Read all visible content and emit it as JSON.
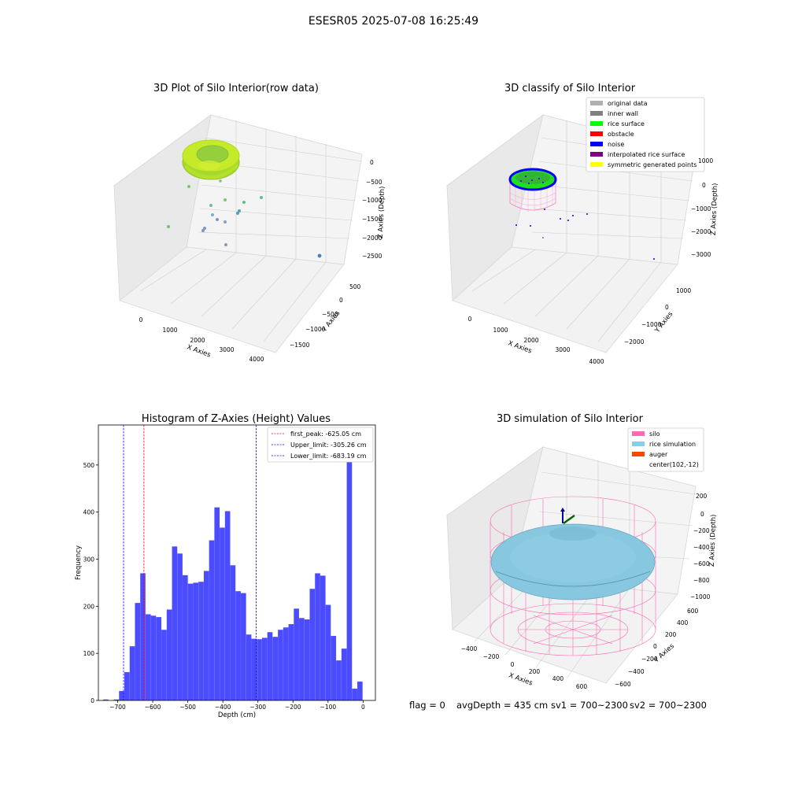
{
  "figure_title": "ESESR05 2025-07-08 16:25:49",
  "footer": {
    "flag": "flag = 0",
    "avg_depth": "avgDepth = 435 cm",
    "sv1": "sv1 = 700~2300",
    "sv2": "sv2 = 700~2300"
  },
  "colors": {
    "hist_bar": "#4b4bff",
    "first_peak": "#ff0000",
    "limits": "#0000ff",
    "rice_points": "#b5e61d",
    "silo_mesh": "#ff69b4",
    "rice_sim": "#87c7e0",
    "auger": "#ff4500"
  },
  "panels": {
    "raw": {
      "title": "3D Plot of Silo Interior(row data)",
      "x_label": "X Axies",
      "y_label": "Y Axies",
      "z_label": "Z Axies (Depth)",
      "x_ticks": [
        "0",
        "1000",
        "2000",
        "3000",
        "4000"
      ],
      "y_ticks": [
        "500",
        "0",
        "−500",
        "−1000",
        "−1500"
      ],
      "z_ticks": [
        "0",
        "−500",
        "−1000",
        "−1500",
        "−2000",
        "−2500"
      ]
    },
    "classify": {
      "title": "3D classify of Silo Interior",
      "x_label": "X Axies",
      "y_label": "Y Axies",
      "z_label": "Z Axies (Depth)",
      "x_ticks": [
        "0",
        "1000",
        "2000",
        "3000",
        "4000"
      ],
      "y_ticks": [
        "1000",
        "0",
        "−1000",
        "−2000"
      ],
      "z_ticks": [
        "1000",
        "0",
        "−1000",
        "−2000",
        "−3000"
      ],
      "legend": [
        {
          "label": "original data",
          "color": "#b0b0b0"
        },
        {
          "label": "inner wall",
          "color": "#808080"
        },
        {
          "label": "rice surface",
          "color": "#00ff00"
        },
        {
          "label": "obstacle",
          "color": "#ff0000"
        },
        {
          "label": "noise",
          "color": "#0000ff"
        },
        {
          "label": "interpolated rice surface",
          "color": "#800080"
        },
        {
          "label": "symmetric generated points",
          "color": "#ffff00"
        }
      ]
    },
    "simulation": {
      "title": "3D simulation of Silo Interior",
      "x_label": "X Axies",
      "y_label": "Y Axies",
      "z_label": "Z Axies (Depth)",
      "x_ticks": [
        "−400",
        "−200",
        "0",
        "200",
        "400",
        "600"
      ],
      "y_ticks": [
        "600",
        "400",
        "200",
        "0",
        "−200",
        "−400",
        "−600"
      ],
      "z_ticks": [
        "200",
        "0",
        "−200",
        "−400",
        "−600",
        "−800",
        "−1000"
      ],
      "legend": [
        {
          "label": "silo",
          "color": "#ff69b4"
        },
        {
          "label": "rice simulation",
          "color": "#87ceeb"
        },
        {
          "label": "auger",
          "color": "#ff4500"
        },
        {
          "label": "center(102,-12)",
          "color": ""
        }
      ]
    }
  },
  "chart_data": [
    {
      "type": "histogram",
      "title": "Histogram of Z-Axies (Height) Values",
      "xlabel": "Depth (cm)",
      "ylabel": "Frequency",
      "xlim": [
        -755,
        35
      ],
      "ylim": [
        0,
        585
      ],
      "x_ticks": [
        -700,
        -600,
        -500,
        -400,
        -300,
        -200,
        -100,
        0
      ],
      "x_tick_labels": [
        "−700",
        "−600",
        "−500",
        "−400",
        "−300",
        "−200",
        "−100",
        "0"
      ],
      "y_ticks": [
        0,
        100,
        200,
        300,
        400,
        500
      ],
      "bin_start": -741.3,
      "bin_width": 15.1,
      "counts": [
        2,
        0,
        2,
        20,
        60,
        115,
        207,
        270,
        183,
        180,
        177,
        150,
        193,
        327,
        312,
        266,
        248,
        250,
        252,
        275,
        340,
        410,
        367,
        402,
        287,
        232,
        228,
        140,
        131,
        130,
        133,
        145,
        135,
        150,
        155,
        162,
        195,
        175,
        172,
        237,
        270,
        265,
        203,
        137,
        85,
        110,
        555,
        25,
        40
      ],
      "vlines": [
        {
          "name": "first_peak: -625.05 cm",
          "x": -625.05,
          "color": "#ff0000"
        },
        {
          "name": "Upper_limit: -305.26 cm",
          "x": -305.26,
          "color": "#0000ff"
        },
        {
          "name": "Lower_limit: -683.19 cm",
          "x": -683.19,
          "color": "#0000ff"
        }
      ],
      "legend_position": "top-right"
    }
  ]
}
